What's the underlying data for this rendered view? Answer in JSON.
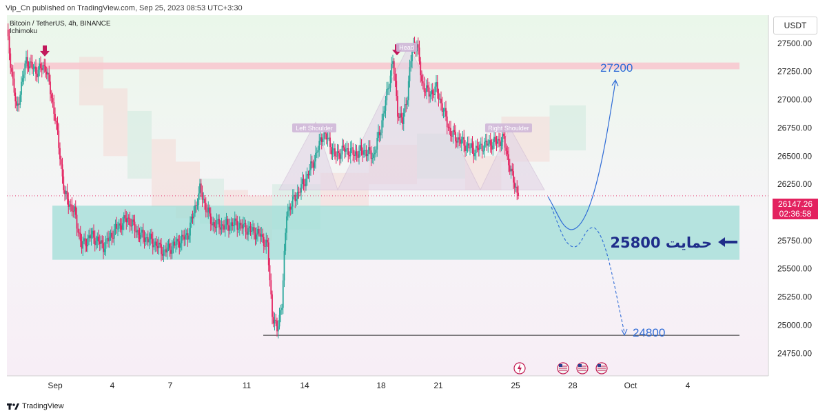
{
  "header": {
    "published_line": "Vip_Cn published on TradingView.com, Sep 25, 2023 08:53 UTC+3:30"
  },
  "legend": {
    "symbol_line": "Bitcoin / TetherUS, 4h, BINANCE",
    "indicator": "Ichimoku"
  },
  "currency_button": "USDT",
  "last_price": {
    "value": "26147.26",
    "countdown": "02:36:58"
  },
  "footer": {
    "brand": "TradingView"
  },
  "colors": {
    "bull": "#26a69a",
    "bear": "#e3215f",
    "resistance_zone": "#f7c9cf",
    "support_zone": "#9fded7",
    "arrow_pink": "#c2185b",
    "projection_blue": "#2e6bd6",
    "support_arrow": "#1f2d8a"
  },
  "chart_data": {
    "type": "candlestick",
    "y_axis": {
      "min": 24550,
      "max": 27750,
      "ticks": [
        "27500.00",
        "27250.00",
        "27000.00",
        "26750.00",
        "26500.00",
        "26250.00",
        "25750.00",
        "25500.00",
        "25250.00",
        "25000.00",
        "24750.00"
      ]
    },
    "x_axis": {
      "ticks": [
        "Sep",
        "4",
        "7",
        "11",
        "14",
        "18",
        "21",
        "25",
        "28",
        "Oct",
        "4"
      ]
    },
    "price_path": [
      [
        0,
        27600
      ],
      [
        8,
        26900
      ],
      [
        16,
        27350
      ],
      [
        24,
        27250
      ],
      [
        32,
        27300
      ],
      [
        40,
        26850
      ],
      [
        48,
        26150
      ],
      [
        56,
        26000
      ],
      [
        62,
        25700
      ],
      [
        70,
        25800
      ],
      [
        80,
        25700
      ],
      [
        90,
        25850
      ],
      [
        100,
        25950
      ],
      [
        110,
        25800
      ],
      [
        120,
        25750
      ],
      [
        130,
        25650
      ],
      [
        140,
        25720
      ],
      [
        150,
        25800
      ],
      [
        160,
        26200
      ],
      [
        170,
        25900
      ],
      [
        180,
        25880
      ],
      [
        190,
        25900
      ],
      [
        200,
        25850
      ],
      [
        210,
        25800
      ],
      [
        216,
        25700
      ],
      [
        220,
        25100
      ],
      [
        224,
        24950
      ],
      [
        228,
        25200
      ],
      [
        232,
        26000
      ],
      [
        240,
        26150
      ],
      [
        248,
        26300
      ],
      [
        256,
        26500
      ],
      [
        262,
        26700
      ],
      [
        266,
        26650
      ],
      [
        272,
        26500
      ],
      [
        280,
        26560
      ],
      [
        288,
        26520
      ],
      [
        296,
        26550
      ],
      [
        304,
        26500
      ],
      [
        310,
        26750
      ],
      [
        316,
        27100
      ],
      [
        320,
        27350
      ],
      [
        324,
        26900
      ],
      [
        328,
        26800
      ],
      [
        332,
        27050
      ],
      [
        336,
        27450
      ],
      [
        340,
        27500
      ],
      [
        344,
        27150
      ],
      [
        350,
        27050
      ],
      [
        356,
        27100
      ],
      [
        362,
        26900
      ],
      [
        368,
        26700
      ],
      [
        374,
        26650
      ],
      [
        380,
        26600
      ],
      [
        388,
        26550
      ],
      [
        396,
        26600
      ],
      [
        404,
        26620
      ],
      [
        412,
        26650
      ],
      [
        418,
        26350
      ],
      [
        424,
        26147
      ]
    ],
    "zones": [
      {
        "kind": "resistance",
        "low": 27270,
        "high": 27330
      },
      {
        "kind": "support",
        "low": 25580,
        "high": 26060
      }
    ],
    "pattern": {
      "left_shoulder_price": 26800,
      "head_price": 27480,
      "right_shoulder_price": 26750,
      "neckline_price": 26200
    },
    "annotations": [
      {
        "text": "Head",
        "price": 27480
      },
      {
        "text": "Left Shoulder",
        "price": 26800
      },
      {
        "text": "Right Shoulder",
        "price": 26750
      },
      {
        "text": "27200",
        "price": 27200
      },
      {
        "text": "24800",
        "price": 24800
      },
      {
        "text": "حمایت 25800",
        "price": 25800
      }
    ],
    "horizontal_lines": [
      {
        "price": 24910
      }
    ],
    "last_price": 26147.26
  }
}
